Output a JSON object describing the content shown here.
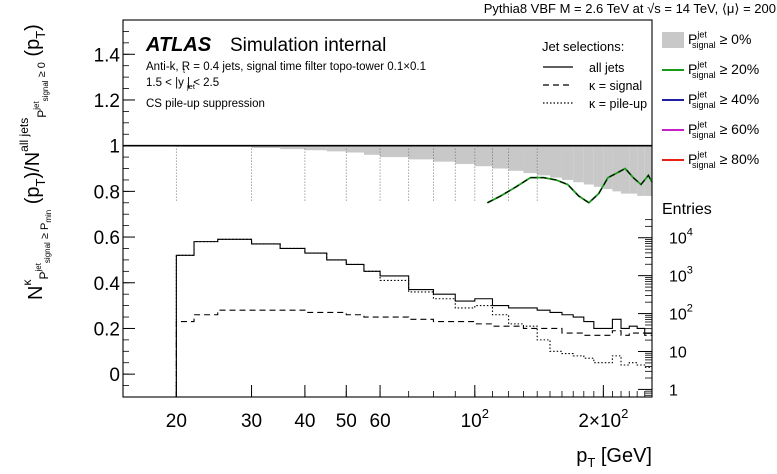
{
  "chart_data": {
    "type": "line",
    "header": "Pythia8 VBF M = 2.6 TeV at √s = 14 TeV, ⟨μ⟩ = 200",
    "atlas_label": "ATLAS",
    "atlas_sub": "Simulation internal",
    "info_lines": [
      "Anti-k, R = 0.4 jets, signal time filter topo-tower 0.1×0.1",
      "1.5 < |y  | < 2.5",
      "CS pile-up suppression"
    ],
    "info_subscripts": [
      "t",
      "jet"
    ],
    "ylabel": "Nκ(pT)/N all jets (pT)",
    "ylabel_parts": {
      "main": "N",
      "kappa": "κ",
      "sub1": "P",
      "sub1_sup": "jet",
      "sub1_sub": "signal",
      "geq": "≥ P",
      "min": "min",
      "pt": "(p",
      "pt_sub": "T",
      "close": ")",
      "slash": "/N",
      "alljets": "all jets",
      "sub2": "P",
      "sub2_sup": "jet",
      "sub2_sub": "signal",
      "geq0": "≥ 0"
    },
    "xlabel": "p",
    "xlabel_sub": "T",
    "xlabel_unit": "[GeV]",
    "x_scale": "log",
    "xlim": [
      15,
      260
    ],
    "ylim": [
      -0.1,
      1.55
    ],
    "x_ticks": [
      {
        "v": 20,
        "label": "20"
      },
      {
        "v": 30,
        "label": "30"
      },
      {
        "v": 40,
        "label": "40"
      },
      {
        "v": 50,
        "label": "50"
      },
      {
        "v": 60,
        "label": "60"
      },
      {
        "v": 100,
        "label": "10",
        "sup": "2"
      },
      {
        "v": 200,
        "label": "2×10",
        "sup": "2"
      }
    ],
    "y_ticks": [
      {
        "v": 0,
        "label": "0"
      },
      {
        "v": 0.2,
        "label": "0.2"
      },
      {
        "v": 0.4,
        "label": "0.4"
      },
      {
        "v": 0.6,
        "label": "0.6"
      },
      {
        "v": 0.8,
        "label": "0.8"
      },
      {
        "v": 1.0,
        "label": "1"
      },
      {
        "v": 1.2,
        "label": "1.2"
      },
      {
        "v": 1.4,
        "label": "1.4"
      }
    ],
    "legend_selections": {
      "title": "Jet selections:",
      "entries": [
        {
          "label": "all jets",
          "style": "solid"
        },
        {
          "label": "κ = signal",
          "style": "dashed"
        },
        {
          "label": "κ = pile-up",
          "style": "dotted"
        }
      ]
    },
    "legend_thresholds": [
      {
        "label": "P",
        "sup": "jet",
        "sub": "signal",
        "thr": "≥ 0%",
        "style": "fill",
        "color": "#c8c8c8"
      },
      {
        "label": "P",
        "sup": "jet",
        "sub": "signal",
        "thr": "≥ 20%",
        "style": "line",
        "color": "#1a9b1a"
      },
      {
        "label": "P",
        "sup": "jet",
        "sub": "signal",
        "thr": "≥ 40%",
        "style": "line",
        "color": "#1f1fa3"
      },
      {
        "label": "P",
        "sup": "jet",
        "sub": "signal",
        "thr": "≥ 60%",
        "style": "line",
        "color": "#c61fc6"
      },
      {
        "label": "P",
        "sup": "jet",
        "sub": "signal",
        "thr": "≥ 80%",
        "style": "line",
        "color": "#e6211a"
      }
    ],
    "entries_axis": {
      "title": "Entries",
      "ticks": [
        {
          "exp": 0,
          "label": "1"
        },
        {
          "exp": 1,
          "label": "10"
        },
        {
          "exp": 2,
          "label": "10",
          "sup": "2"
        },
        {
          "exp": 3,
          "label": "10",
          "sup": "3"
        },
        {
          "exp": 4,
          "label": "10",
          "sup": "4"
        }
      ],
      "range_exp": [
        -0.2,
        4.5
      ]
    },
    "reference_line": 1.0,
    "bin_edges": [
      20,
      22,
      25,
      30,
      35,
      40,
      45,
      50,
      55,
      60,
      70,
      80,
      90,
      100,
      110,
      120,
      130,
      140,
      150,
      160,
      170,
      180,
      190,
      200,
      210,
      220,
      230,
      240,
      250,
      260
    ],
    "series": [
      {
        "name": "all jets",
        "style": "solid",
        "color": "#000000",
        "values": [
          0.52,
          0.58,
          0.59,
          0.57,
          0.55,
          0.53,
          0.5,
          0.48,
          0.45,
          0.43,
          0.37,
          0.35,
          0.32,
          0.33,
          0.3,
          0.29,
          0.29,
          0.28,
          0.27,
          0.26,
          0.25,
          0.23,
          0.2,
          0.2,
          0.24,
          0.2,
          0.21,
          0.2,
          0.18
        ]
      },
      {
        "name": "κ = signal",
        "style": "dashed",
        "color": "#000000",
        "values": [
          0.23,
          0.26,
          0.28,
          0.28,
          0.28,
          0.27,
          0.27,
          0.26,
          0.25,
          0.25,
          0.24,
          0.23,
          0.23,
          0.22,
          0.21,
          0.21,
          0.2,
          0.2,
          0.2,
          0.18,
          0.18,
          0.17,
          0.17,
          0.17,
          0.19,
          0.17,
          0.18,
          0.18,
          0.17
        ]
      },
      {
        "name": "κ = pile-up",
        "style": "dotted",
        "color": "#000000",
        "values": [
          0.52,
          0.58,
          0.59,
          0.57,
          0.55,
          0.53,
          0.5,
          0.48,
          0.45,
          0.41,
          0.36,
          0.33,
          0.29,
          0.3,
          0.26,
          0.22,
          0.21,
          0.15,
          0.1,
          0.09,
          0.08,
          0.07,
          0.05,
          0.05,
          0.08,
          0.04,
          0.05,
          0.04,
          0.03
        ]
      }
    ],
    "efficiency_band": {
      "name": "P ≥ 0%",
      "color": "#c8c8c8",
      "values": [
        0.995,
        0.995,
        0.995,
        0.99,
        0.985,
        0.98,
        0.975,
        0.97,
        0.96,
        0.95,
        0.94,
        0.93,
        0.92,
        0.91,
        0.9,
        0.89,
        0.88,
        0.87,
        0.86,
        0.85,
        0.84,
        0.83,
        0.82,
        0.81,
        0.8,
        0.79,
        0.79,
        0.78,
        0.78
      ]
    },
    "threshold20_curve": {
      "name": "P ≥ 20%",
      "x": [
        107,
        115,
        125,
        135,
        145,
        155,
        165,
        175,
        185,
        195,
        205,
        215,
        225,
        235,
        245,
        255,
        260
      ],
      "y": [
        0.75,
        0.78,
        0.82,
        0.86,
        0.86,
        0.85,
        0.83,
        0.78,
        0.75,
        0.79,
        0.86,
        0.88,
        0.9,
        0.86,
        0.83,
        0.87,
        0.84
      ]
    },
    "bin_dividers": [
      20,
      30,
      40,
      50,
      60,
      70,
      80,
      90,
      100,
      110,
      120,
      140
    ]
  }
}
